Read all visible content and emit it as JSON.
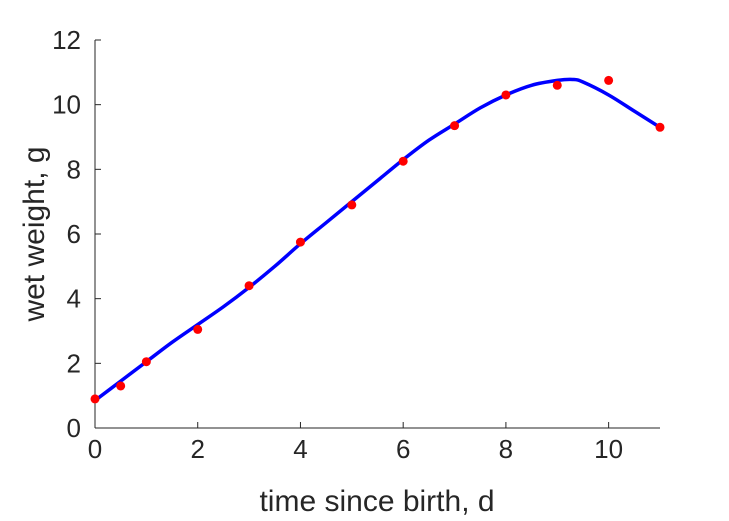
{
  "chart_data": {
    "type": "line",
    "title": "",
    "xlabel": "time since birth, d",
    "ylabel": "wet weight, g",
    "xlim": [
      0,
      11
    ],
    "ylim": [
      0,
      12
    ],
    "xticks": [
      0,
      2,
      4,
      6,
      8,
      10
    ],
    "yticks": [
      0,
      2,
      4,
      6,
      8,
      10,
      12
    ],
    "grid": false,
    "legend": "none",
    "series": [
      {
        "kind": "line",
        "color": "#0000ff",
        "x": [
          0,
          0.5,
          1,
          1.5,
          2,
          2.5,
          3,
          3.5,
          4,
          4.5,
          5,
          5.5,
          6,
          6.5,
          7,
          7.5,
          8,
          8.5,
          9,
          9.3,
          9.5,
          10,
          10.5,
          11
        ],
        "y": [
          0.85,
          1.45,
          2.05,
          2.65,
          3.2,
          3.75,
          4.35,
          5.0,
          5.7,
          6.35,
          7.0,
          7.65,
          8.3,
          8.9,
          9.4,
          9.9,
          10.3,
          10.6,
          10.75,
          10.78,
          10.7,
          10.3,
          9.8,
          9.3
        ]
      },
      {
        "kind": "scatter",
        "color": "#ff0000",
        "x": [
          0,
          0.5,
          1,
          2,
          3,
          4,
          5,
          6,
          7,
          8,
          9,
          10,
          11
        ],
        "y": [
          0.9,
          1.3,
          2.05,
          3.05,
          4.4,
          5.75,
          6.9,
          8.25,
          9.35,
          10.3,
          10.6,
          10.75,
          9.3
        ]
      }
    ]
  }
}
